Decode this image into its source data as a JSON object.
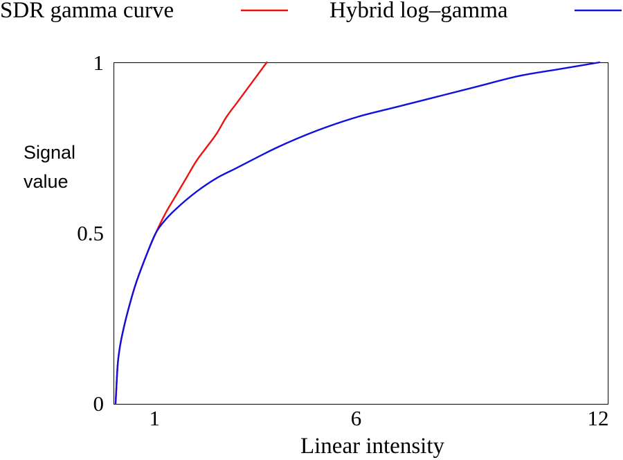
{
  "chart_data": {
    "type": "line",
    "title": "",
    "xlabel": "Linear intensity",
    "ylabel": [
      "Signal",
      "value"
    ],
    "xlim": [
      0,
      12
    ],
    "ylim": [
      0,
      1
    ],
    "xticks": [
      {
        "value": 1,
        "label": "1"
      },
      {
        "value": 6,
        "label": "6"
      },
      {
        "value": 12,
        "label": "12"
      }
    ],
    "yticks": [
      {
        "value": 0,
        "label": "0"
      },
      {
        "value": 0.5,
        "label": "0.5"
      },
      {
        "value": 1,
        "label": "1"
      }
    ],
    "grid": false,
    "legend_position": "top",
    "series": [
      {
        "name": "SDR gamma curve",
        "color": "#ee1111",
        "x": [
          0,
          0.05,
          0.1,
          0.2,
          0.35,
          0.5,
          0.75,
          1.0,
          1.25,
          1.5,
          1.75,
          2.0,
          2.25,
          2.5,
          2.75,
          3.0,
          3.25,
          3.5,
          3.75
        ],
        "y": [
          0,
          0.11,
          0.16,
          0.22,
          0.29,
          0.35,
          0.43,
          0.5,
          0.56,
          0.61,
          0.66,
          0.71,
          0.75,
          0.79,
          0.84,
          0.88,
          0.92,
          0.96,
          1.0
        ]
      },
      {
        "name": "Hybrid log–gamma",
        "color": "#1111dd",
        "x": [
          0,
          0.05,
          0.1,
          0.2,
          0.35,
          0.5,
          0.75,
          1.0,
          1.25,
          1.5,
          2.0,
          2.5,
          3.0,
          4.0,
          5.0,
          6.0,
          7.0,
          8.0,
          9.0,
          10.0,
          11.0,
          12.0
        ],
        "y": [
          0,
          0.11,
          0.16,
          0.22,
          0.29,
          0.35,
          0.43,
          0.5,
          0.54,
          0.57,
          0.62,
          0.66,
          0.69,
          0.75,
          0.8,
          0.84,
          0.87,
          0.9,
          0.93,
          0.96,
          0.98,
          1.0
        ]
      }
    ]
  }
}
